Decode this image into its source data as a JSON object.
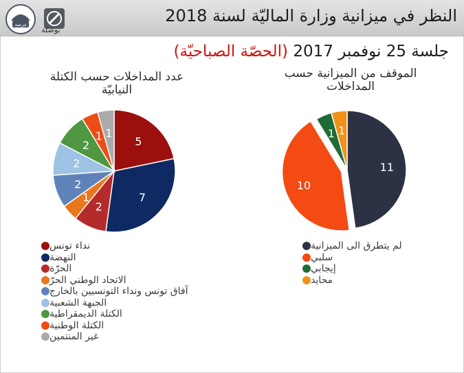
{
  "header": {
    "title": "النظر في ميزانية وزارة الماليّة لسنة 2018",
    "logo_left_text": "مرصد",
    "logo_right_text": "بوصلة"
  },
  "subtitle": {
    "part1": "جلسة 25 نوفمبر 2017",
    "part2": "(الحصّة الصباحيّة)"
  },
  "colors": {
    "nidaa": "#9b0f0d",
    "nahdha": "#0f2a62",
    "horra": "#b52a2a",
    "ittihad": "#e9761d",
    "afek": "#5f83b9",
    "jabha": "#9ec2e3",
    "democratique": "#4f9741",
    "wataniya": "#ee4c16",
    "independants": "#aaaaaa",
    "not_addressed": "#2c3244",
    "negative": "#f44a13",
    "positive": "#1f6b36",
    "neutral": "#f0921a"
  },
  "chart_data": [
    {
      "type": "pie",
      "title": "عدد المداخلات حسب الكتلة النيابيّة",
      "categories": [
        "نداء تونس",
        "النهضة",
        "الحرّة",
        "الاتحاد الوطني الحرّ",
        "آفاق تونس ونداء التونسيين بالخارج",
        "الجبهة الشعبية",
        "الكتلة الديمقراطية",
        "الكتلة الوطنية",
        "غير المنتمين"
      ],
      "values": [
        5,
        7,
        2,
        1,
        2,
        2,
        2,
        1,
        1
      ],
      "legend": "bottom"
    },
    {
      "type": "pie",
      "title": "الموقف من الميزانية حسب المداخلات",
      "categories": [
        "لم يتطرق الى الميزانية",
        "سلبي",
        "إيجابي",
        "محايد"
      ],
      "values": [
        11,
        10,
        1,
        1
      ],
      "legend": "bottom"
    }
  ]
}
